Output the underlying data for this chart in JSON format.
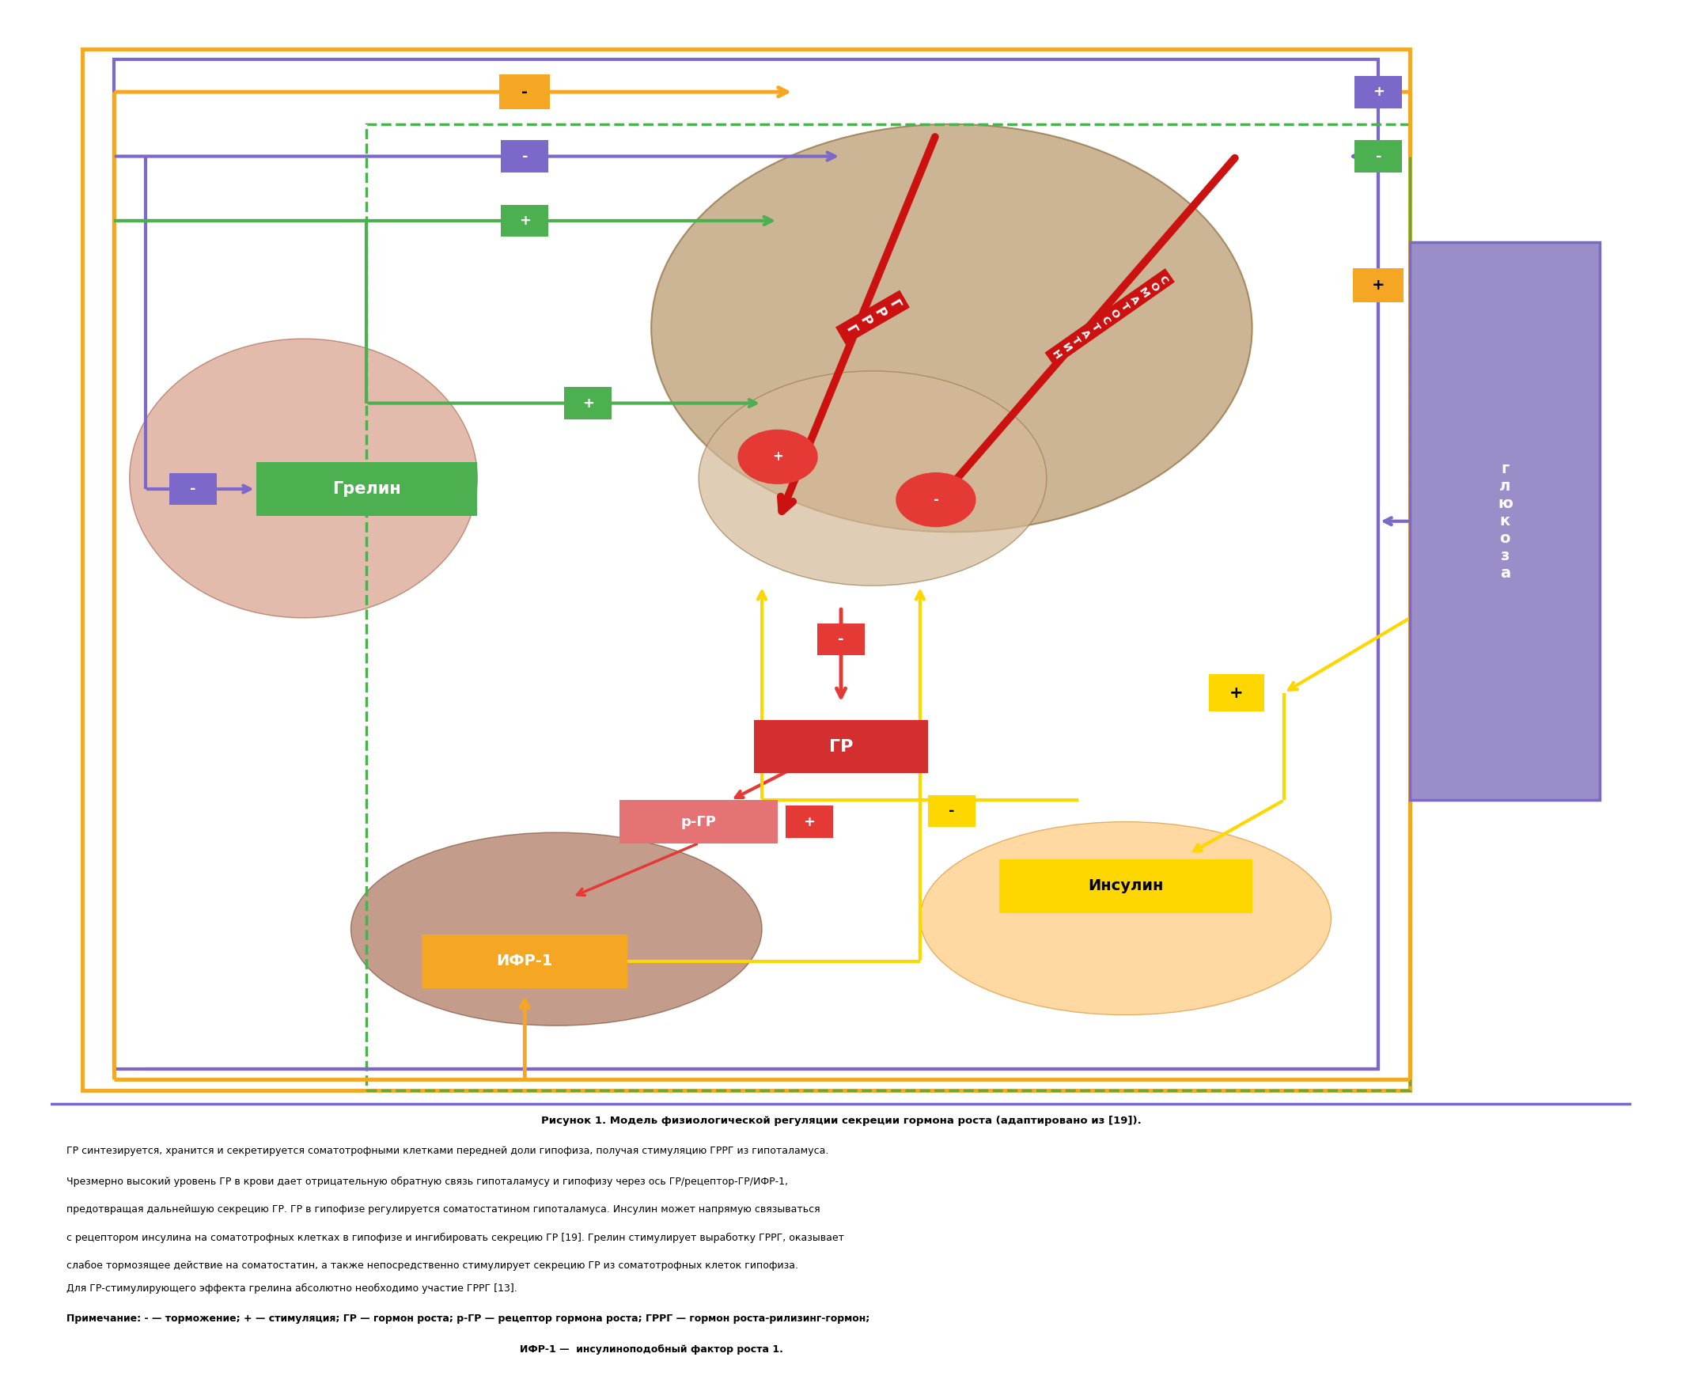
{
  "figure_width": 21.26,
  "figure_height": 17.39,
  "bg_color": "#ffffff",
  "title_bold": "Рисунок 1.",
  "title_normal": " Модель физиологической регуляции секреции гормона роста (адаптировано из [19]).",
  "caption_lines": [
    "ГР синтезируется, хранится и секретируется соматотрофными клетками передней доли гипофиза, получая стимуляцию ГРРГ из гипоталамуса.",
    "Чрезмерно высокий уровень ГР в крови дает отрицательную обратную связь гипоталамусу и гипофизу через ось ГР/рецептор-ГР/ИФР-1,",
    "предотвращая дальнейшую секрецию ГР. ГР в гипофизе регулируется соматостатином гипоталамуса. Инсулин может напрямую связываться",
    "с рецептором инсулина на соматотрофных клетках в гипофизе и ингибировать секрецию ГР [19]. Грелин стимулирует выработку ГРРГ, оказывает",
    "слабое тормозящее действие на соматостатин, а также непосредственно стимулирует секрецию ГР из соматотрофных клеток гипофиза.",
    "Для ГР-стимулирующего эффекта грелина абсолютно необходимо участие ГРРГ [13]."
  ],
  "note_line1": "Примечание: - — торможение; + — стимуляция; ГР — гормон роста; р-ГР — рецептор гормона роста; ГРРГ — гормон роста-рилизинг-гормон;",
  "note_line2": "ИФР-1 —  инсулиноподобный фактор роста 1.",
  "colors": {
    "orange": "#F5A623",
    "purple": "#7B68C8",
    "green": "#4CAF50",
    "red": "#E53935",
    "yellow": "#FFD700",
    "ifr_orange": "#F5A623",
    "glucose_bg": "#9B8DC8",
    "grelin_green": "#4CAF50",
    "insulin_yellow": "#FFD700",
    "gr_red": "#D32F2F",
    "rgr_salmon": "#E57373",
    "soma_red_arrow": "#CC1111"
  }
}
